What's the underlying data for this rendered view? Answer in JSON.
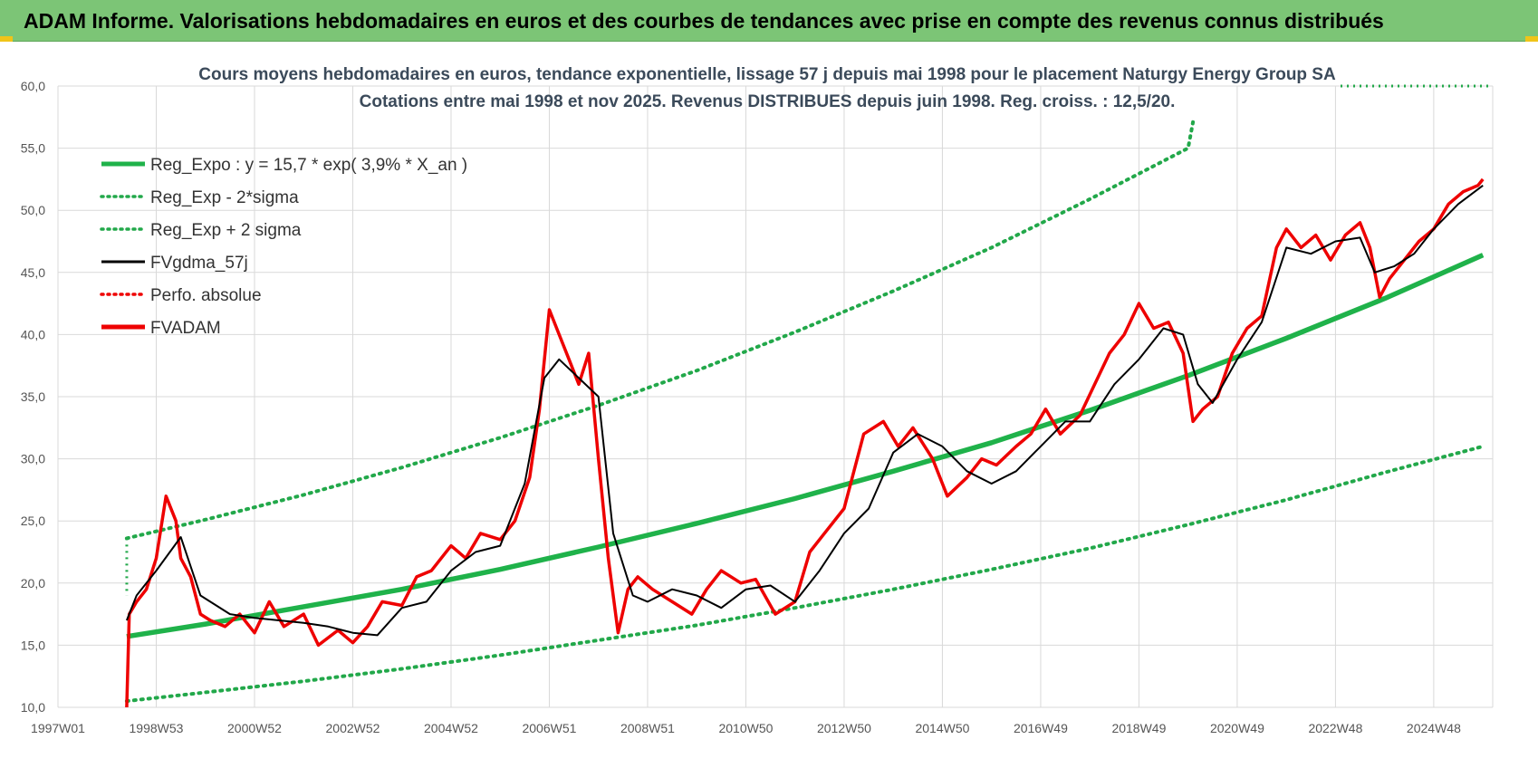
{
  "header": {
    "title": "ADAM Informe. Valorisations hebdomadaires en euros et des courbes de tendances avec prise en compte des revenus connus distribués"
  },
  "colors": {
    "header_bg": "#7cc576",
    "reg_green": "#1fb24a",
    "sigma_green": "#22a84a",
    "fv_black": "#000000",
    "fvadam_red": "#ee0000",
    "perfo_red": "#ee0000"
  },
  "chart_data": {
    "type": "line",
    "title_lines": [
      "Cours moyens hebdomadaires en euros, tendance exponentielle, lissage 57 j depuis mai 1998 pour le placement Naturgy Energy Group SA",
      "Cotations entre mai 1998 et nov 2025. Revenus  DISTRIBUES depuis juin 1998. Reg. croiss. : 12,5/20."
    ],
    "xlim": [
      1997.0,
      2026.2
    ],
    "ylim": [
      10,
      60
    ],
    "y_ticks": [
      10,
      15,
      20,
      25,
      30,
      35,
      40,
      45,
      50,
      55,
      60
    ],
    "y_tick_labels": [
      "10,0",
      "15,0",
      "20,0",
      "25,0",
      "30,0",
      "35,0",
      "40,0",
      "45,0",
      "50,0",
      "55,0",
      "60,0"
    ],
    "x_ticks": [
      {
        "x": 1997.0,
        "label": "1997W01"
      },
      {
        "x": 1999.0,
        "label": "1998W53"
      },
      {
        "x": 2001.0,
        "label": "2000W52"
      },
      {
        "x": 2003.0,
        "label": "2002W52"
      },
      {
        "x": 2005.0,
        "label": "2004W52"
      },
      {
        "x": 2007.0,
        "label": "2006W51"
      },
      {
        "x": 2009.0,
        "label": "2008W51"
      },
      {
        "x": 2011.0,
        "label": "2010W50"
      },
      {
        "x": 2013.0,
        "label": "2012W50"
      },
      {
        "x": 2015.0,
        "label": "2014W50"
      },
      {
        "x": 2017.0,
        "label": "2016W49"
      },
      {
        "x": 2019.0,
        "label": "2018W49"
      },
      {
        "x": 2021.0,
        "label": "2020W49"
      },
      {
        "x": 2023.0,
        "label": "2022W48"
      },
      {
        "x": 2025.0,
        "label": "2024W48"
      }
    ],
    "grid": true,
    "legend": "top-left",
    "legend_entries": [
      {
        "label": "Reg_Expo : y = 15,7 * exp( 3,9% *  X_an )",
        "style": "solid-thick",
        "color": "#1fb24a"
      },
      {
        "label": "Reg_Exp - 2*sigma",
        "style": "dotted",
        "color": "#22a84a"
      },
      {
        "label": "Reg_Exp + 2 sigma",
        "style": "dotted",
        "color": "#22a84a"
      },
      {
        "label": "FVgdma_57j",
        "style": "solid",
        "color": "#000000"
      },
      {
        "label": "Perfo. absolue",
        "style": "dotted",
        "color": "#ee0000"
      },
      {
        "label": "FVADAM",
        "style": "solid-thick",
        "color": "#ee0000"
      }
    ],
    "series": [
      {
        "name": "Reg_Expo : y = 15,7 * exp( 3,9% *  X_an )",
        "x": [
          1998.4,
          2000,
          2002,
          2004,
          2006,
          2008,
          2010,
          2012,
          2014,
          2016,
          2018,
          2020,
          2022,
          2024,
          2026.0
        ],
        "y": [
          15.7,
          16.7,
          18.1,
          19.5,
          21.1,
          22.9,
          24.8,
          26.8,
          29.0,
          31.3,
          33.9,
          36.7,
          39.7,
          42.9,
          46.4
        ]
      },
      {
        "name": "Reg_Exp - 2*sigma",
        "x": [
          1998.4,
          2000,
          2002,
          2004,
          2006,
          2008,
          2010,
          2012,
          2014,
          2016,
          2018,
          2020,
          2022,
          2024,
          2026.0
        ],
        "y": [
          10.5,
          11.2,
          12.1,
          13.1,
          14.2,
          15.4,
          16.6,
          18.0,
          19.5,
          21.1,
          22.8,
          24.7,
          26.7,
          28.9,
          31.0
        ]
      },
      {
        "name": "Reg_Exp + 2 sigma",
        "x": [
          1998.4,
          2000,
          2002,
          2004,
          2006,
          2008,
          2010,
          2012,
          2014,
          2016,
          2018,
          2020,
          2020.1
        ],
        "y": [
          23.6,
          25.1,
          27.1,
          29.3,
          31.7,
          34.3,
          37.1,
          40.2,
          43.5,
          47.0,
          50.9,
          55.0,
          57.1
        ]
      },
      {
        "name": "FVgdma_57j",
        "x": [
          1998.4,
          1998.6,
          1999.0,
          1999.5,
          1999.9,
          2000.5,
          2001.0,
          2001.5,
          2002.0,
          2002.5,
          2003.0,
          2003.5,
          2004.0,
          2004.5,
          2005.0,
          2005.5,
          2006.0,
          2006.5,
          2006.9,
          2007.2,
          2007.6,
          2008.0,
          2008.3,
          2008.7,
          2009.0,
          2009.5,
          2010.0,
          2010.5,
          2011.0,
          2011.5,
          2012.0,
          2012.5,
          2013.0,
          2013.5,
          2014.0,
          2014.5,
          2015.0,
          2015.5,
          2016.0,
          2016.5,
          2017.0,
          2017.5,
          2018.0,
          2018.5,
          2019.0,
          2019.5,
          2019.9,
          2020.2,
          2020.5,
          2021.0,
          2021.5,
          2022.0,
          2022.5,
          2023.0,
          2023.5,
          2023.8,
          2024.2,
          2024.6,
          2025.0,
          2025.5,
          2026.0
        ],
        "y": [
          17.0,
          19.0,
          21.0,
          23.7,
          19.0,
          17.5,
          17.2,
          17.0,
          16.8,
          16.5,
          16.0,
          15.8,
          18.0,
          18.5,
          21.0,
          22.5,
          23.0,
          28.0,
          36.5,
          38.0,
          36.5,
          35.0,
          24.0,
          19.0,
          18.5,
          19.5,
          19.0,
          18.0,
          19.5,
          19.8,
          18.5,
          21.0,
          24.0,
          26.0,
          30.5,
          32.0,
          31.0,
          29.0,
          28.0,
          29.0,
          31.0,
          33.0,
          33.0,
          36.0,
          38.0,
          40.5,
          40.0,
          36.0,
          34.5,
          38.0,
          41.0,
          47.0,
          46.5,
          47.5,
          47.8,
          45.0,
          45.5,
          46.5,
          48.5,
          50.5,
          52.0
        ]
      },
      {
        "name": "FVADAM",
        "x": [
          1998.4,
          1998.45,
          1998.6,
          1998.8,
          1999.0,
          1999.2,
          1999.4,
          1999.5,
          1999.7,
          1999.9,
          2000.1,
          2000.4,
          2000.7,
          2001.0,
          2001.3,
          2001.6,
          2002.0,
          2002.3,
          2002.7,
          2003.0,
          2003.3,
          2003.6,
          2004.0,
          2004.3,
          2004.6,
          2005.0,
          2005.3,
          2005.6,
          2006.0,
          2006.3,
          2006.6,
          2006.8,
          2007.0,
          2007.2,
          2007.4,
          2007.6,
          2007.8,
          2008.0,
          2008.2,
          2008.4,
          2008.6,
          2008.8,
          2009.1,
          2009.5,
          2009.9,
          2010.2,
          2010.5,
          2010.9,
          2011.2,
          2011.6,
          2012.0,
          2012.3,
          2012.6,
          2013.0,
          2013.4,
          2013.8,
          2014.1,
          2014.4,
          2014.8,
          2015.1,
          2015.5,
          2015.8,
          2016.1,
          2016.5,
          2016.8,
          2017.1,
          2017.4,
          2017.8,
          2018.1,
          2018.4,
          2018.7,
          2019.0,
          2019.3,
          2019.6,
          2019.9,
          2020.1,
          2020.3,
          2020.6,
          2020.9,
          2021.2,
          2021.5,
          2021.8,
          2022.0,
          2022.3,
          2022.6,
          2022.9,
          2023.2,
          2023.5,
          2023.7,
          2023.9,
          2024.1,
          2024.4,
          2024.7,
          2025.0,
          2025.3,
          2025.6,
          2025.9,
          2026.0
        ],
        "y": [
          10.0,
          17.5,
          18.5,
          19.5,
          22.0,
          27.0,
          25.0,
          22.0,
          20.5,
          17.5,
          17.0,
          16.5,
          17.5,
          16.0,
          18.5,
          16.5,
          17.5,
          15.0,
          16.2,
          15.2,
          16.5,
          18.5,
          18.2,
          20.5,
          21.0,
          23.0,
          22.0,
          24.0,
          23.5,
          25.0,
          28.5,
          34.0,
          42.0,
          40.0,
          38.0,
          36.0,
          38.5,
          30.0,
          22.0,
          16.0,
          19.5,
          20.5,
          19.5,
          18.5,
          17.5,
          19.5,
          21.0,
          20.0,
          20.3,
          17.5,
          18.5,
          22.5,
          24.0,
          26.0,
          32.0,
          33.0,
          31.0,
          32.5,
          30.0,
          27.0,
          28.5,
          30.0,
          29.5,
          31.0,
          32.0,
          34.0,
          32.0,
          33.5,
          36.0,
          38.5,
          40.0,
          42.5,
          40.5,
          41.0,
          38.5,
          33.0,
          34.0,
          35.0,
          38.5,
          40.5,
          41.5,
          47.0,
          48.5,
          47.0,
          48.0,
          46.0,
          48.0,
          49.0,
          47.0,
          43.0,
          44.5,
          46.0,
          47.5,
          48.5,
          50.5,
          51.5,
          52.0,
          52.5
        ]
      }
    ]
  }
}
